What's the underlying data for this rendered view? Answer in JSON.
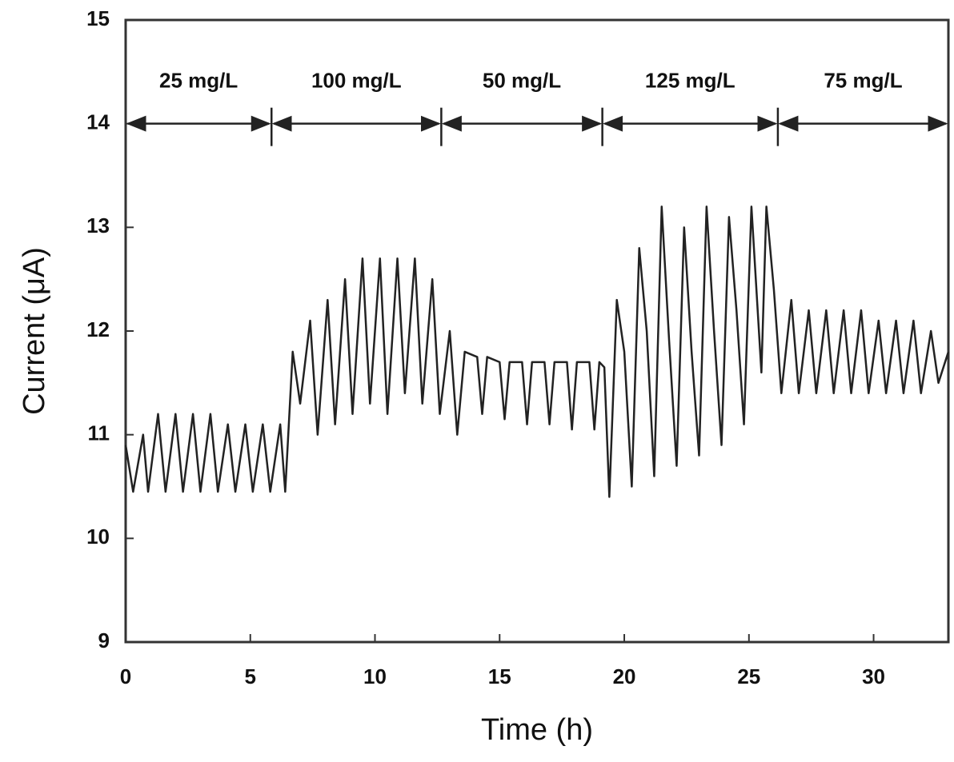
{
  "chart_data": {
    "type": "line",
    "x_label": "Time (h)",
    "y_label": "Current (μA)",
    "xlim": [
      0,
      33
    ],
    "ylim": [
      9,
      15
    ],
    "xticks": [
      0,
      5,
      10,
      15,
      20,
      25,
      30
    ],
    "yticks": [
      9,
      10,
      11,
      12,
      13,
      14,
      15
    ],
    "series": [
      {
        "name": "Current",
        "color": "#222222",
        "x": [
          0,
          0.3,
          0.7,
          0.9,
          1.3,
          1.6,
          2.0,
          2.3,
          2.7,
          3.0,
          3.4,
          3.7,
          4.1,
          4.4,
          4.8,
          5.1,
          5.5,
          5.8,
          6.2,
          6.4,
          6.7,
          7.0,
          7.4,
          7.7,
          8.1,
          8.4,
          8.8,
          9.1,
          9.5,
          9.8,
          10.2,
          10.5,
          10.9,
          11.2,
          11.6,
          11.9,
          12.3,
          12.6,
          13.0,
          13.3,
          13.6,
          14.1,
          14.3,
          14.5,
          15.0,
          15.2,
          15.4,
          15.9,
          16.1,
          16.3,
          16.8,
          17.0,
          17.2,
          17.7,
          17.9,
          18.1,
          18.6,
          18.8,
          19.0,
          19.2,
          19.4,
          19.7,
          20.0,
          20.3,
          20.6,
          20.9,
          21.2,
          21.5,
          21.8,
          22.1,
          22.4,
          22.7,
          23.0,
          23.3,
          23.6,
          23.9,
          24.2,
          24.5,
          24.8,
          25.1,
          25.5,
          25.7,
          26.0,
          26.3,
          26.7,
          27.0,
          27.4,
          27.7,
          28.1,
          28.4,
          28.8,
          29.1,
          29.5,
          29.8,
          30.2,
          30.5,
          30.9,
          31.2,
          31.6,
          31.9,
          32.3,
          32.6,
          33.0
        ],
        "values": [
          10.9,
          10.45,
          11.0,
          10.45,
          11.2,
          10.45,
          11.2,
          10.45,
          11.2,
          10.45,
          11.2,
          10.45,
          11.1,
          10.45,
          11.1,
          10.45,
          11.1,
          10.45,
          11.1,
          10.45,
          11.8,
          11.3,
          12.1,
          11.0,
          12.3,
          11.1,
          12.5,
          11.2,
          12.7,
          11.3,
          12.7,
          11.2,
          12.7,
          11.4,
          12.7,
          11.3,
          12.5,
          11.2,
          12.0,
          11.0,
          11.8,
          11.75,
          11.2,
          11.75,
          11.7,
          11.15,
          11.7,
          11.7,
          11.1,
          11.7,
          11.7,
          11.1,
          11.7,
          11.7,
          11.05,
          11.7,
          11.7,
          11.05,
          11.7,
          11.65,
          10.4,
          12.3,
          11.8,
          10.5,
          12.8,
          12.0,
          10.6,
          13.2,
          11.9,
          10.7,
          13.0,
          11.8,
          10.8,
          13.2,
          12.0,
          10.9,
          13.1,
          12.2,
          11.1,
          13.2,
          11.6,
          13.2,
          12.4,
          11.4,
          12.3,
          11.4,
          12.2,
          11.4,
          12.2,
          11.4,
          12.2,
          11.4,
          12.2,
          11.4,
          12.1,
          11.4,
          12.1,
          11.4,
          12.1,
          11.4,
          12.0,
          11.5,
          11.8
        ]
      }
    ],
    "segments": [
      {
        "label": "25 mg/L",
        "start": 0,
        "end": 5.85,
        "y": 14
      },
      {
        "label": "100 mg/L",
        "start": 5.85,
        "end": 12.66,
        "y": 14
      },
      {
        "label": "50 mg/L",
        "start": 12.66,
        "end": 19.12,
        "y": 14
      },
      {
        "label": "125 mg/L",
        "start": 19.12,
        "end": 26.16,
        "y": 14
      },
      {
        "label": "75 mg/L",
        "start": 26.16,
        "end": 33,
        "y": 14
      }
    ]
  }
}
